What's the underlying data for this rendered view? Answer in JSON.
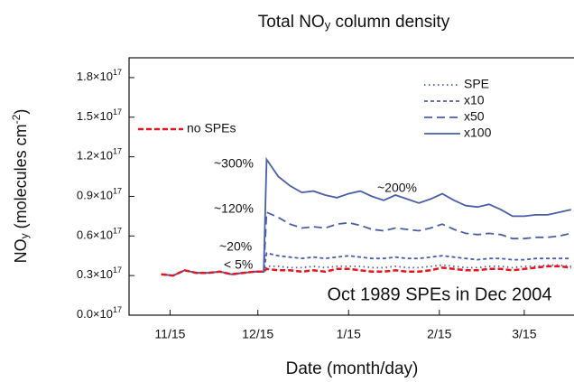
{
  "chart_data": {
    "type": "line",
    "title": [
      "Total NO",
      "y",
      " column density"
    ],
    "xlabel": "Date (month/day)",
    "ylabel": [
      "NO",
      "y",
      " (molecules cm",
      "-2",
      ")"
    ],
    "x": [
      "11/12",
      "11/16",
      "11/20",
      "11/24",
      "11/28",
      "12/2",
      "12/6",
      "12/10",
      "12/14",
      "12/17",
      "12/18",
      "12/22",
      "12/26",
      "12/30",
      "1/3",
      "1/7",
      "1/11",
      "1/15",
      "1/19",
      "1/23",
      "1/27",
      "1/31",
      "2/4",
      "2/8",
      "2/12",
      "2/16",
      "2/20",
      "2/24",
      "2/28",
      "3/3",
      "3/7",
      "3/11",
      "3/15",
      "3/19",
      "3/23",
      "3/27",
      "3/31"
    ],
    "xlim": [
      "11/1",
      "4/1"
    ],
    "xticks": [
      "11/15",
      "12/15",
      "1/15",
      "2/15",
      "3/15"
    ],
    "ylim": [
      0,
      1.95e+17
    ],
    "yticks": [
      {
        "value": 0,
        "label": "0.0×10",
        "exponent": "17"
      },
      {
        "value": 3e+16,
        "label": "0.3×10",
        "exponent": "17"
      },
      {
        "value": 6e+16,
        "label": "0.6×10",
        "exponent": "17"
      },
      {
        "value": 9e+16,
        "label": "0.9×10",
        "exponent": "17"
      },
      {
        "value": 1.2e+17,
        "label": "1.2×10",
        "exponent": "17"
      },
      {
        "value": 1.5e+17,
        "label": "1.5×10",
        "exponent": "17"
      },
      {
        "value": 1.8e+17,
        "label": "1.8×10",
        "exponent": "17"
      }
    ],
    "series": [
      {
        "name": "no SPEs",
        "color": "#e8141c",
        "dash": "6,3",
        "width": 2.5,
        "values": [
          3.1e+16,
          3e+16,
          3.4e+16,
          3.2e+16,
          3.2e+16,
          3.3e+16,
          3.1e+16,
          3.2e+16,
          3.3e+16,
          3.3e+16,
          3.5e+16,
          3.4e+16,
          3.4e+16,
          3.3e+16,
          3.4e+16,
          3.3e+16,
          3.5e+16,
          3.5e+16,
          3.4e+16,
          3.3e+16,
          3.3e+16,
          3.4e+16,
          3.3e+16,
          3.3e+16,
          3.4e+16,
          3.6e+16,
          3.5e+16,
          3.4e+16,
          3.4e+16,
          3.5e+16,
          3.5e+16,
          3.4e+16,
          3.5e+16,
          3.6e+16,
          3.7e+16,
          3.7e+16,
          3.6e+16
        ]
      },
      {
        "name": "SPE",
        "color": "#4a5ea8",
        "dash": "1.5,3.5",
        "width": 1.8,
        "values": [
          3.1e+16,
          3e+16,
          3.4e+16,
          3.2e+16,
          3.2e+16,
          3.3e+16,
          3.1e+16,
          3.2e+16,
          3.3e+16,
          3.3e+16,
          3.7e+16,
          3.7e+16,
          3.6e+16,
          3.6e+16,
          3.7e+16,
          3.6e+16,
          3.7e+16,
          3.7e+16,
          3.7e+16,
          3.6e+16,
          3.6e+16,
          3.7e+16,
          3.6e+16,
          3.6e+16,
          3.7e+16,
          3.8e+16,
          3.7e+16,
          3.6e+16,
          3.6e+16,
          3.7e+16,
          3.7e+16,
          3.6e+16,
          3.7e+16,
          3.7e+16,
          3.8e+16,
          3.8e+16,
          3.7e+16
        ]
      },
      {
        "name": "x10",
        "color": "#4a5ea8",
        "dash": "4,3",
        "width": 1.8,
        "values": [
          3.1e+16,
          3e+16,
          3.4e+16,
          3.2e+16,
          3.2e+16,
          3.3e+16,
          3.1e+16,
          3.2e+16,
          3.3e+16,
          3.3e+16,
          4.7e+16,
          4.5e+16,
          4.4e+16,
          4.3e+16,
          4.4e+16,
          4.3e+16,
          4.4e+16,
          4.5e+16,
          4.4e+16,
          4.3e+16,
          4.3e+16,
          4.4e+16,
          4.3e+16,
          4.3e+16,
          4.4e+16,
          4.5e+16,
          4.4e+16,
          4.3e+16,
          4.2e+16,
          4.3e+16,
          4.3e+16,
          4.2e+16,
          4.2e+16,
          4.3e+16,
          4.3e+16,
          4.3e+16,
          4.3e+16
        ]
      },
      {
        "name": "x50",
        "color": "#4a5ea8",
        "dash": "9,5",
        "width": 1.8,
        "values": [
          3.1e+16,
          3e+16,
          3.4e+16,
          3.2e+16,
          3.2e+16,
          3.3e+16,
          3.1e+16,
          3.2e+16,
          3.3e+16,
          3.3e+16,
          7.8e+16,
          7.4e+16,
          6.9e+16,
          6.6e+16,
          6.7e+16,
          6.6e+16,
          6.9e+16,
          7e+16,
          6.8e+16,
          6.5e+16,
          6.4e+16,
          6.6e+16,
          6.5e+16,
          6.4e+16,
          6.6e+16,
          6.9e+16,
          6.5e+16,
          6.2e+16,
          6.1e+16,
          6.2e+16,
          6.1e+16,
          5.8e+16,
          5.8e+16,
          5.9e+16,
          5.9e+16,
          6e+16,
          6.2e+16
        ]
      },
      {
        "name": "x100",
        "color": "#4a5ea8",
        "width": 1.8,
        "values": [
          3.1e+16,
          3e+16,
          3.4e+16,
          3.2e+16,
          3.2e+16,
          3.3e+16,
          3.1e+16,
          3.2e+16,
          3.3e+16,
          3.3e+16,
          1.18e+17,
          1.05e+17,
          9.8e+16,
          9.3e+16,
          9.4e+16,
          9.1e+16,
          8.9e+16,
          9.2e+16,
          9.4e+16,
          9e+16,
          8.7e+16,
          9.1e+16,
          8.8e+16,
          8.5e+16,
          8.8e+16,
          9.2e+16,
          8.7e+16,
          8.3e+16,
          8.2e+16,
          8.4e+16,
          8e+16,
          7.5e+16,
          7.5e+16,
          7.6e+16,
          7.6e+16,
          7.8e+16,
          8e+16
        ]
      }
    ],
    "annotations": [
      "~300%",
      "~120%",
      "~20%",
      "< 5%",
      "~200%",
      "Oct 1989 SPEs in Dec 2004"
    ]
  }
}
